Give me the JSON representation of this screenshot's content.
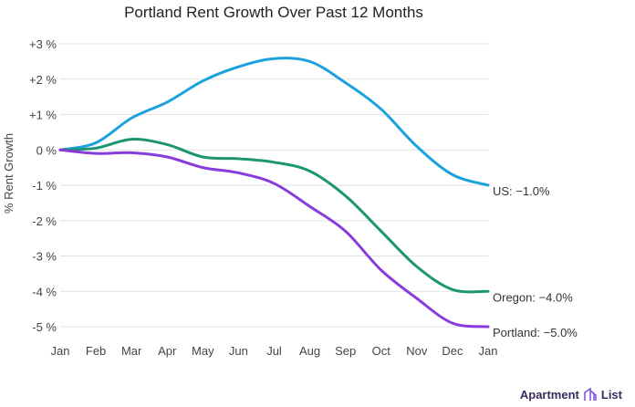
{
  "chart_data": {
    "type": "line",
    "title": "Portland Rent Growth Over Past 12 Months",
    "xlabel": "",
    "ylabel": "% Rent Growth",
    "categories": [
      "Jan",
      "Feb",
      "Mar",
      "Apr",
      "May",
      "Jun",
      "Jul",
      "Aug",
      "Sep",
      "Oct",
      "Nov",
      "Dec",
      "Jan"
    ],
    "ylim": [
      -5,
      3
    ],
    "yticks": [
      3,
      2,
      1,
      0,
      -1,
      -2,
      -3,
      -4,
      -5
    ],
    "ytick_labels": [
      "+3 %",
      "+2 %",
      "+1 %",
      "0 %",
      "-1 %",
      "-2 %",
      "-3 %",
      "-4 %",
      "-5 %"
    ],
    "grid": true,
    "series": [
      {
        "name": "US",
        "label": "US: −1.0%",
        "color": "#1ba1db",
        "values": [
          0,
          0.2,
          0.9,
          1.35,
          1.95,
          2.35,
          2.58,
          2.5,
          1.9,
          1.15,
          0.1,
          -0.7,
          -1.0
        ]
      },
      {
        "name": "Oregon",
        "label": "Oregon: −4.0%",
        "color": "#1c9572",
        "values": [
          0,
          0.05,
          0.3,
          0.15,
          -0.2,
          -0.25,
          -0.35,
          -0.6,
          -1.3,
          -2.3,
          -3.3,
          -3.95,
          -4.0
        ]
      },
      {
        "name": "Portland",
        "label": "Portland: −5.0%",
        "color": "#8a3bdb",
        "values": [
          0,
          -0.1,
          -0.08,
          -0.2,
          -0.5,
          -0.65,
          -0.95,
          -1.6,
          -2.3,
          -3.4,
          -4.2,
          -4.9,
          -5.0
        ]
      }
    ]
  },
  "logo": {
    "text_left": "Apartment",
    "text_right": "List"
  }
}
